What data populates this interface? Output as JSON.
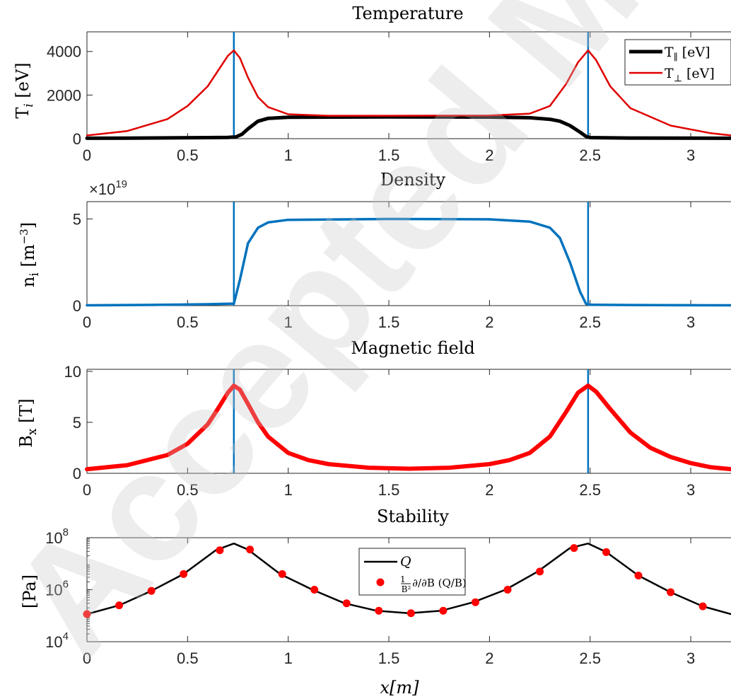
{
  "watermark": "Accepted Manuscript",
  "chart_data": [
    {
      "type": "line",
      "title": "Temperature",
      "ylabel": "T_i [eV]",
      "xlim": [
        0,
        3.2
      ],
      "ylim": [
        0,
        4900
      ],
      "xticks": [
        0,
        0.5,
        1,
        1.5,
        2,
        2.5,
        3
      ],
      "xtick_labels": [
        "0",
        "0.5",
        "1",
        "1.5",
        "2",
        "2.5",
        "3"
      ],
      "yticks": [
        0,
        2000,
        4000
      ],
      "ytick_labels": [
        "0",
        "2000",
        "4000"
      ],
      "vlines": [
        0.73,
        2.49
      ],
      "legend_position": "top-right",
      "legend": [
        "T_∥ [eV]",
        "T_⊥ [eV]"
      ],
      "series": [
        {
          "name": "T_∥ [eV]",
          "color": "#000000",
          "x": [
            0,
            0.2,
            0.4,
            0.6,
            0.7,
            0.74,
            0.77,
            0.8,
            0.85,
            0.9,
            1.0,
            1.5,
            2.0,
            2.2,
            2.3,
            2.35,
            2.4,
            2.45,
            2.48,
            2.5,
            2.7,
            3.0,
            3.2
          ],
          "values": [
            20,
            25,
            35,
            50,
            60,
            80,
            200,
            450,
            800,
            930,
            980,
            1000,
            990,
            960,
            890,
            800,
            600,
            300,
            100,
            50,
            30,
            25,
            20
          ]
        },
        {
          "name": "T_⊥ [eV]",
          "color": "#e00000",
          "x": [
            0,
            0.2,
            0.4,
            0.5,
            0.6,
            0.65,
            0.7,
            0.73,
            0.76,
            0.8,
            0.85,
            0.9,
            1.0,
            1.2,
            1.5,
            2.0,
            2.2,
            2.3,
            2.38,
            2.44,
            2.49,
            2.53,
            2.6,
            2.7,
            2.9,
            3.1,
            3.2
          ],
          "values": [
            150,
            350,
            900,
            1500,
            2400,
            3100,
            3800,
            4050,
            3700,
            2800,
            1900,
            1450,
            1120,
            1050,
            1050,
            1060,
            1150,
            1500,
            2500,
            3500,
            4050,
            3600,
            2400,
            1400,
            600,
            250,
            150
          ]
        }
      ]
    },
    {
      "type": "line",
      "title": "Density",
      "ylabel": "n_i [m^-3]",
      "exponent_label": "×10^19",
      "xlim": [
        0,
        3.2
      ],
      "ylim": [
        0,
        6
      ],
      "xticks": [
        0,
        0.5,
        1,
        1.5,
        2,
        2.5,
        3
      ],
      "xtick_labels": [
        "0",
        "0.5",
        "1",
        "1.5",
        "2",
        "2.5",
        "3"
      ],
      "yticks": [
        0,
        5
      ],
      "ytick_labels": [
        "0",
        "5"
      ],
      "vlines": [
        0.73,
        2.49
      ],
      "series": [
        {
          "color": "#0072bd",
          "x": [
            0,
            0.3,
            0.6,
            0.73,
            0.76,
            0.8,
            0.85,
            0.9,
            1.0,
            1.5,
            2.0,
            2.2,
            2.3,
            2.35,
            2.4,
            2.45,
            2.48,
            2.5,
            2.8,
            3.2
          ],
          "values": [
            0.02,
            0.04,
            0.08,
            0.12,
            1.5,
            3.6,
            4.5,
            4.8,
            4.95,
            5.0,
            4.98,
            4.85,
            4.5,
            3.9,
            2.5,
            0.8,
            0.1,
            0.05,
            0.03,
            0.02
          ]
        }
      ]
    },
    {
      "type": "line",
      "title": "Magnetic field",
      "ylabel": "B_x [T]",
      "xlim": [
        0,
        3.2
      ],
      "ylim": [
        0,
        10.2
      ],
      "xticks": [
        0,
        0.5,
        1,
        1.5,
        2,
        2.5,
        3
      ],
      "xtick_labels": [
        "0",
        "0.5",
        "1",
        "1.5",
        "2",
        "2.5",
        "3"
      ],
      "yticks": [
        0,
        5,
        10
      ],
      "ytick_labels": [
        "0",
        "5",
        "10"
      ],
      "vlines": [
        0.73,
        2.49
      ],
      "series": [
        {
          "color": "#ff0000",
          "x": [
            0,
            0.2,
            0.4,
            0.5,
            0.6,
            0.65,
            0.7,
            0.73,
            0.76,
            0.8,
            0.85,
            0.9,
            1.0,
            1.1,
            1.2,
            1.4,
            1.6,
            1.8,
            2.0,
            2.1,
            2.2,
            2.3,
            2.38,
            2.44,
            2.49,
            2.53,
            2.6,
            2.7,
            2.8,
            2.9,
            3.0,
            3.1,
            3.2
          ],
          "values": [
            0.4,
            0.8,
            1.8,
            2.9,
            4.8,
            6.3,
            7.9,
            8.6,
            8.2,
            6.8,
            5.0,
            3.6,
            2.0,
            1.3,
            0.9,
            0.55,
            0.45,
            0.55,
            0.9,
            1.3,
            2.0,
            3.6,
            6.0,
            7.9,
            8.6,
            8.0,
            6.3,
            4.0,
            2.5,
            1.6,
            1.0,
            0.6,
            0.4
          ]
        }
      ]
    },
    {
      "type": "line",
      "title": "Stability",
      "ylabel": "[Pa]",
      "xlabel": "x[m]",
      "yscale": "log",
      "xlim": [
        0,
        3.2
      ],
      "ylim": [
        10000,
        100000000
      ],
      "xticks": [
        0,
        0.5,
        1,
        1.5,
        2,
        2.5,
        3
      ],
      "xtick_labels": [
        "0",
        "0.5",
        "1",
        "1.5",
        "2",
        "2.5",
        "3"
      ],
      "yticks": [
        10000,
        1000000,
        100000000
      ],
      "ytick_labels": [
        "10^4",
        "10^6",
        "10^8"
      ],
      "legend_position": "top-center",
      "legend": [
        "Q",
        "1/B² ∂/∂B (Q/B)"
      ],
      "series": [
        {
          "name": "Q",
          "color": "#000000",
          "x": [
            0,
            0.16,
            0.32,
            0.48,
            0.64,
            0.73,
            0.8,
            0.96,
            1.12,
            1.28,
            1.44,
            1.6,
            1.76,
            1.92,
            2.08,
            2.24,
            2.4,
            2.49,
            2.58,
            2.74,
            2.9,
            3.06,
            3.2
          ],
          "values": [
            115000,
            250000,
            900000,
            4000000,
            33000000,
            60000000,
            35000000,
            4000000,
            1000000,
            300000,
            155000,
            125000,
            155000,
            330000,
            1000000,
            5000000,
            40000000,
            60000000,
            28000000,
            3500000,
            800000,
            230000,
            115000
          ]
        },
        {
          "name": "1/B² ∂/∂B (Q/B)",
          "color": "#ff0000",
          "x": [
            0,
            0.16,
            0.32,
            0.48,
            0.66,
            0.81,
            0.97,
            1.13,
            1.29,
            1.45,
            1.61,
            1.77,
            1.93,
            2.09,
            2.25,
            2.42,
            2.58,
            2.74,
            2.9,
            3.06
          ],
          "values": [
            115000,
            250000,
            900000,
            4000000,
            33000000,
            35000000,
            4000000,
            1000000,
            300000,
            155000,
            125000,
            155000,
            330000,
            1000000,
            5000000,
            40000000,
            28000000,
            3500000,
            800000,
            230000
          ]
        }
      ]
    }
  ]
}
